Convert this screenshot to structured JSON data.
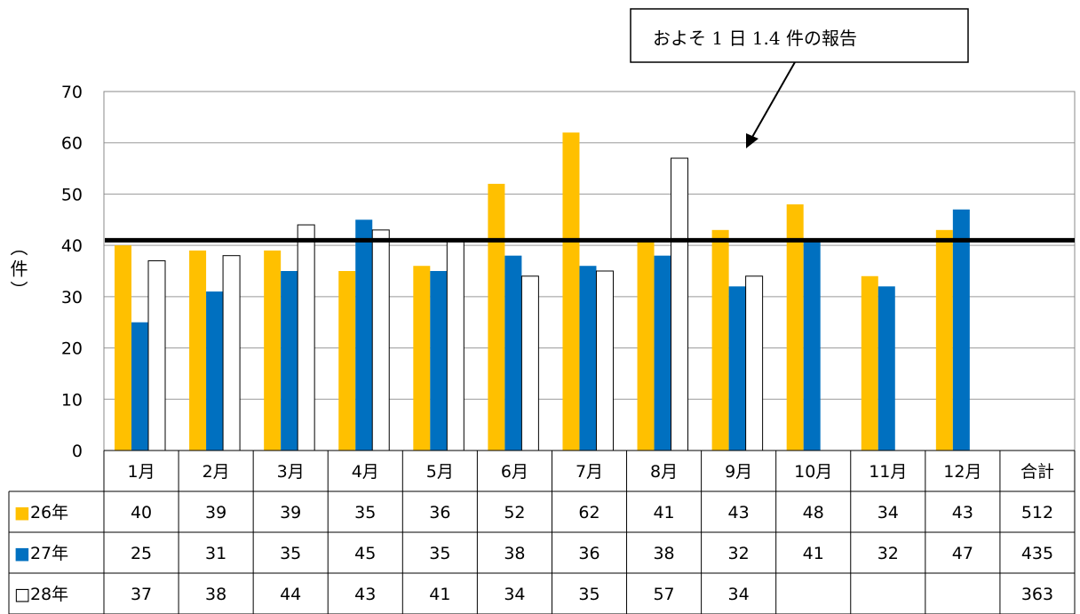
{
  "chart_data": {
    "type": "bar",
    "categories": [
      "1月",
      "2月",
      "3月",
      "4月",
      "5月",
      "6月",
      "7月",
      "8月",
      "9月",
      "10月",
      "11月",
      "12月"
    ],
    "series": [
      {
        "name": "26年",
        "values": [
          40,
          39,
          39,
          35,
          36,
          52,
          62,
          41,
          43,
          48,
          34,
          43
        ],
        "total": "512",
        "color": "#FFC000",
        "marker": "■"
      },
      {
        "name": "27年",
        "values": [
          25,
          31,
          35,
          45,
          35,
          38,
          36,
          38,
          32,
          41,
          32,
          47
        ],
        "total": "435",
        "color": "#0070C0",
        "marker": "■"
      },
      {
        "name": "28年",
        "values": [
          37,
          38,
          44,
          43,
          41,
          34,
          35,
          57,
          34,
          null,
          null,
          null
        ],
        "total": "363",
        "color": "#FFFFFF",
        "marker": "□"
      }
    ],
    "total_label": "合計",
    "ylabel": "（件）",
    "ylim": [
      0,
      70
    ],
    "yticks": [
      0,
      10,
      20,
      30,
      40,
      50,
      60,
      70
    ],
    "gridlines": true,
    "reference_line": 41,
    "annotation": "およそ 1 日 1.4 件の報告",
    "legend": "data-table"
  }
}
